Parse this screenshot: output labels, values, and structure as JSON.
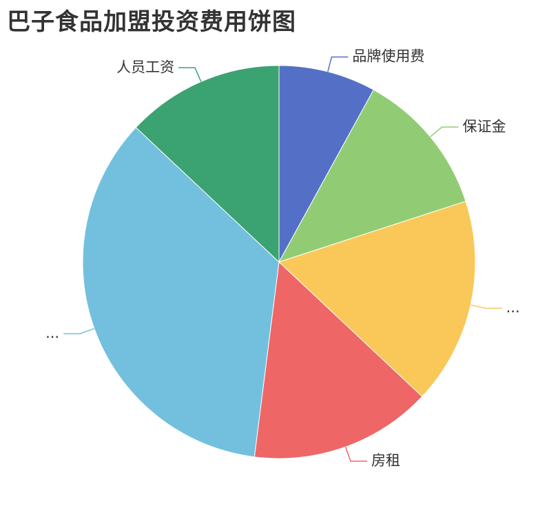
{
  "chart_data": {
    "type": "pie",
    "title": "巴子食品加盟投资费用饼图",
    "slices": [
      {
        "label": "品牌使用费",
        "value": 8,
        "color": "#5470c6",
        "label_text": "品牌使用费"
      },
      {
        "label": "保证金",
        "value": 12,
        "color": "#91cc75",
        "label_text": "保证金"
      },
      {
        "label": "",
        "value": 17,
        "color": "#fac858",
        "label_text": "..."
      },
      {
        "label": "房租",
        "value": 15,
        "color": "#ee6666",
        "label_text": "房租"
      },
      {
        "label": "",
        "value": 35,
        "color": "#73c0de",
        "label_text": "..."
      },
      {
        "label": "人员工资",
        "value": 13,
        "color": "#3ba272",
        "label_text": "人员工资"
      }
    ],
    "start_angle_deg": 90,
    "direction": "clockwise"
  }
}
